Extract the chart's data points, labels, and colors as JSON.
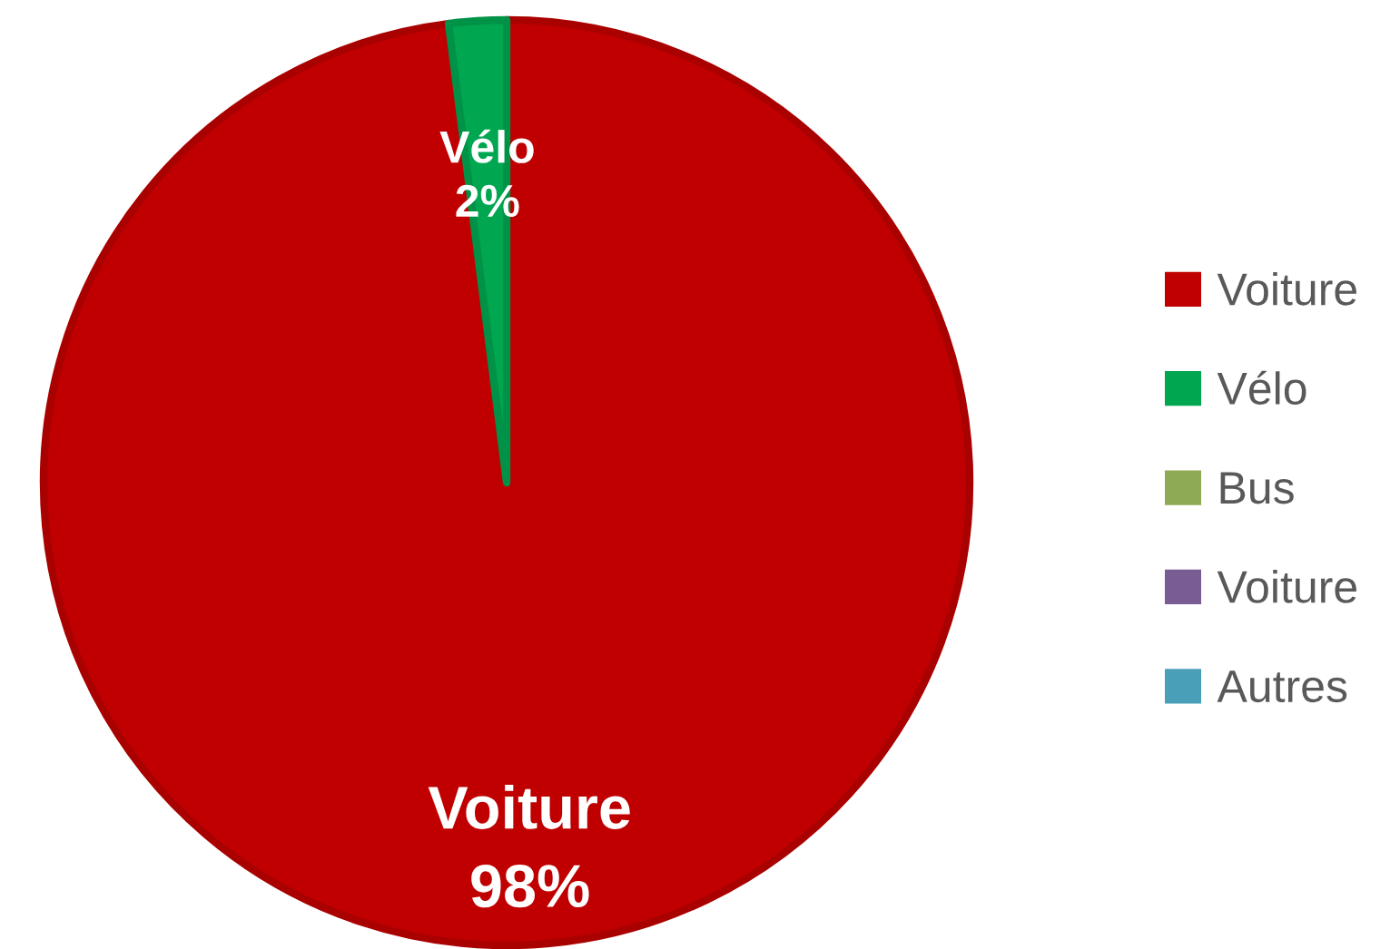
{
  "chart_data": {
    "type": "pie",
    "categories": [
      "Voiture",
      "Vélo",
      "Bus",
      "Voiture",
      "Autres"
    ],
    "values": [
      98,
      2,
      0,
      0,
      0
    ],
    "colors": [
      "#c00000",
      "#00a650",
      "#8faa55",
      "#7a5c95",
      "#4a9fb8"
    ],
    "value_labels": [
      "98%",
      "2%",
      null,
      null,
      null
    ],
    "legend": "right"
  }
}
